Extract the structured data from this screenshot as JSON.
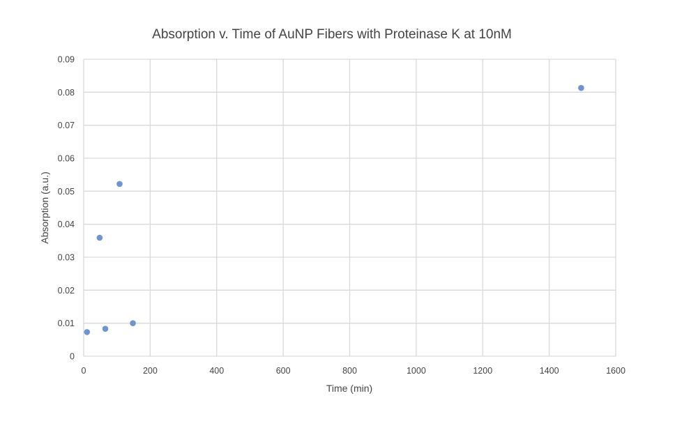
{
  "chart_data": {
    "type": "scatter",
    "title": "Absorption v. Time of AuNP Fibers with Proteinase K at 10nM",
    "xlabel": "Time (min)",
    "ylabel": "Absorption (a.u.)",
    "xlim": [
      0,
      1600
    ],
    "ylim": [
      0,
      0.09
    ],
    "xticks": [
      "0",
      "200",
      "400",
      "600",
      "800",
      "1000",
      "1200",
      "1400",
      "1600"
    ],
    "yticks": [
      "0",
      "0.01",
      "0.02",
      "0.03",
      "0.04",
      "0.05",
      "0.06",
      "0.07",
      "0.08",
      "0.09"
    ],
    "grid": true,
    "legend": "none",
    "marker_color": "#6f95cd",
    "grid_color": "#d9d9d9",
    "series": [
      {
        "points": [
          {
            "x": 10,
            "y": 0.0073
          },
          {
            "x": 48,
            "y": 0.0359
          },
          {
            "x": 65,
            "y": 0.0083
          },
          {
            "x": 108,
            "y": 0.0522
          },
          {
            "x": 148,
            "y": 0.01
          },
          {
            "x": 1496,
            "y": 0.0813
          }
        ]
      }
    ]
  }
}
